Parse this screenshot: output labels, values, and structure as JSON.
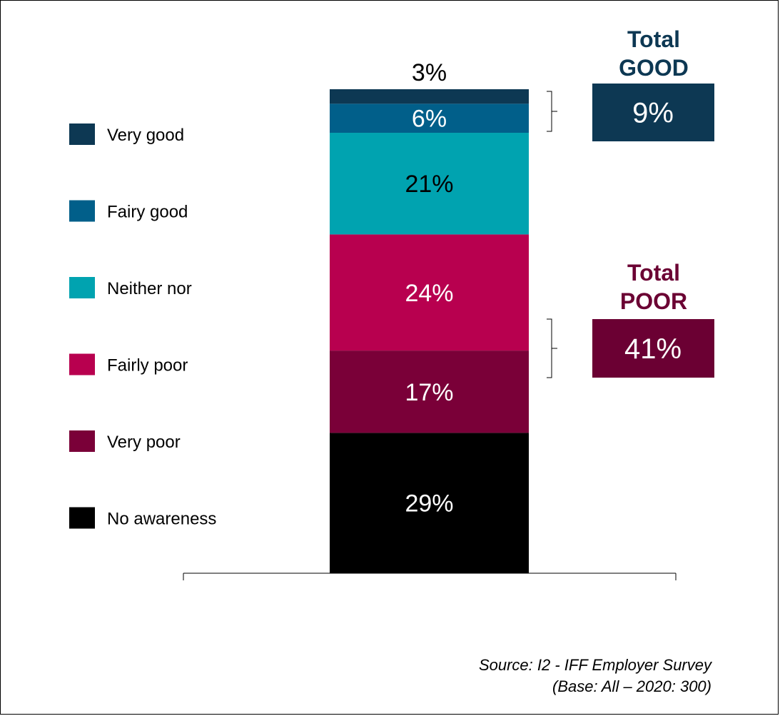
{
  "chart_data": {
    "type": "bar",
    "stacked": true,
    "orientation": "vertical",
    "segments_bottom_to_top": [
      {
        "name": "No awareness",
        "value": 29,
        "label": "29%",
        "color": "#000000",
        "label_color": "#ffffff"
      },
      {
        "name": "Very poor",
        "value": 17,
        "label": "17%",
        "color": "#7a0038",
        "label_color": "#ffffff"
      },
      {
        "name": "Fairly poor",
        "value": 24,
        "label": "24%",
        "color": "#b8004f",
        "label_color": "#ffffff"
      },
      {
        "name": "Neither nor",
        "value": 21,
        "label": "21%",
        "color": "#00a3b0",
        "label_color": "#000000"
      },
      {
        "name": "Fairy good",
        "value": 6,
        "label": "6%",
        "color": "#015f8a",
        "label_color": "#ffffff"
      },
      {
        "name": "Very good",
        "value": 3,
        "label": "3%",
        "color": "#0d3853",
        "label_color": "#000000"
      }
    ],
    "legend": {
      "placement": "left",
      "items": [
        {
          "label": "Very good",
          "color": "#0d3853"
        },
        {
          "label": "Fairy good",
          "color": "#015f8a"
        },
        {
          "label": "Neither nor",
          "color": "#00a3b0"
        },
        {
          "label": "Fairly poor",
          "color": "#b8004f"
        },
        {
          "label": "Very poor",
          "color": "#7a0038"
        },
        {
          "label": "No awareness",
          "color": "#000000"
        }
      ]
    },
    "totals": [
      {
        "title_line1": "Total",
        "title_line2": "GOOD",
        "value": 9,
        "label": "9%",
        "color": "#0d3853",
        "groups": [
          "Very good",
          "Fairy good"
        ]
      },
      {
        "title_line1": "Total",
        "title_line2": "POOR",
        "value": 41,
        "label": "41%",
        "color": "#6b0033",
        "groups": [
          "Fairly poor",
          "Very poor"
        ]
      }
    ]
  },
  "source": {
    "line1": "Source: I2 - IFF Employer Survey",
    "line2": "(Base: All – 2020: 300)"
  }
}
